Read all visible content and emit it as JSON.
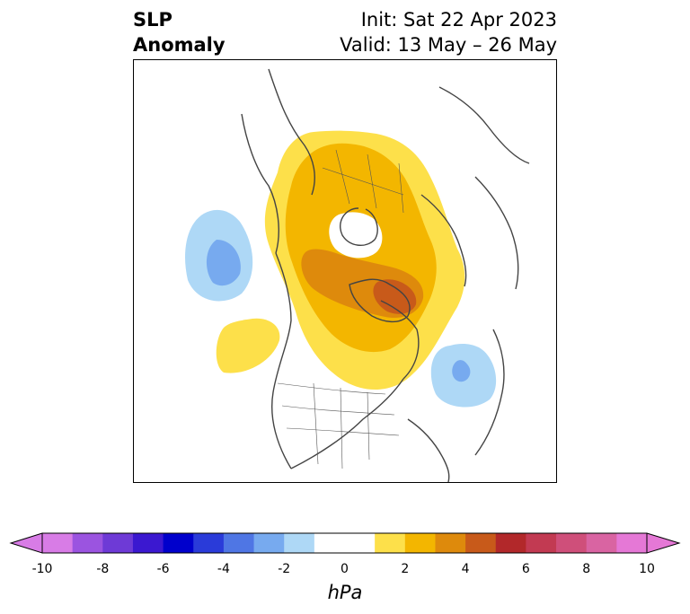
{
  "title": {
    "left_line1": "SLP",
    "left_line2": "Anomaly",
    "init": "Init: Sat 22 Apr 2023",
    "valid": "Valid: 13 May – 26 May"
  },
  "colorbar": {
    "units": "hPa",
    "ticks": [
      "-10",
      "-8",
      "-6",
      "-4",
      "-2",
      "0",
      "2",
      "4",
      "6",
      "8",
      "10"
    ],
    "bins": [
      {
        "from": -10,
        "to": -9,
        "color": "#d87ce6"
      },
      {
        "from": -9,
        "to": -8,
        "color": "#9b54e0"
      },
      {
        "from": -8,
        "to": -7,
        "color": "#6e3ad6"
      },
      {
        "from": -7,
        "to": -6,
        "color": "#3b18d0"
      },
      {
        "from": -6,
        "to": -5,
        "color": "#0000cc"
      },
      {
        "from": -5,
        "to": -4,
        "color": "#2a3bd9"
      },
      {
        "from": -4,
        "to": -3,
        "color": "#4f76e4"
      },
      {
        "from": -3,
        "to": -2,
        "color": "#77aaef"
      },
      {
        "from": -2,
        "to": -1,
        "color": "#aed8f6"
      },
      {
        "from": -1,
        "to": 1,
        "color": "#ffffff"
      },
      {
        "from": 1,
        "to": 2,
        "color": "#fde04a"
      },
      {
        "from": 2,
        "to": 3,
        "color": "#f3b600"
      },
      {
        "from": 3,
        "to": 4,
        "color": "#de8a0c"
      },
      {
        "from": 4,
        "to": 5,
        "color": "#c85a1a"
      },
      {
        "from": 5,
        "to": 6,
        "color": "#b2282a"
      },
      {
        "from": 6,
        "to": 7,
        "color": "#c23a52"
      },
      {
        "from": 7,
        "to": 8,
        "color": "#cf4f7a"
      },
      {
        "from": 8,
        "to": 9,
        "color": "#d964a2"
      },
      {
        "from": 9,
        "to": 10,
        "color": "#e578d6"
      }
    ],
    "extend_low_color": "#d87ce6",
    "extend_high_color": "#e578d6"
  }
}
